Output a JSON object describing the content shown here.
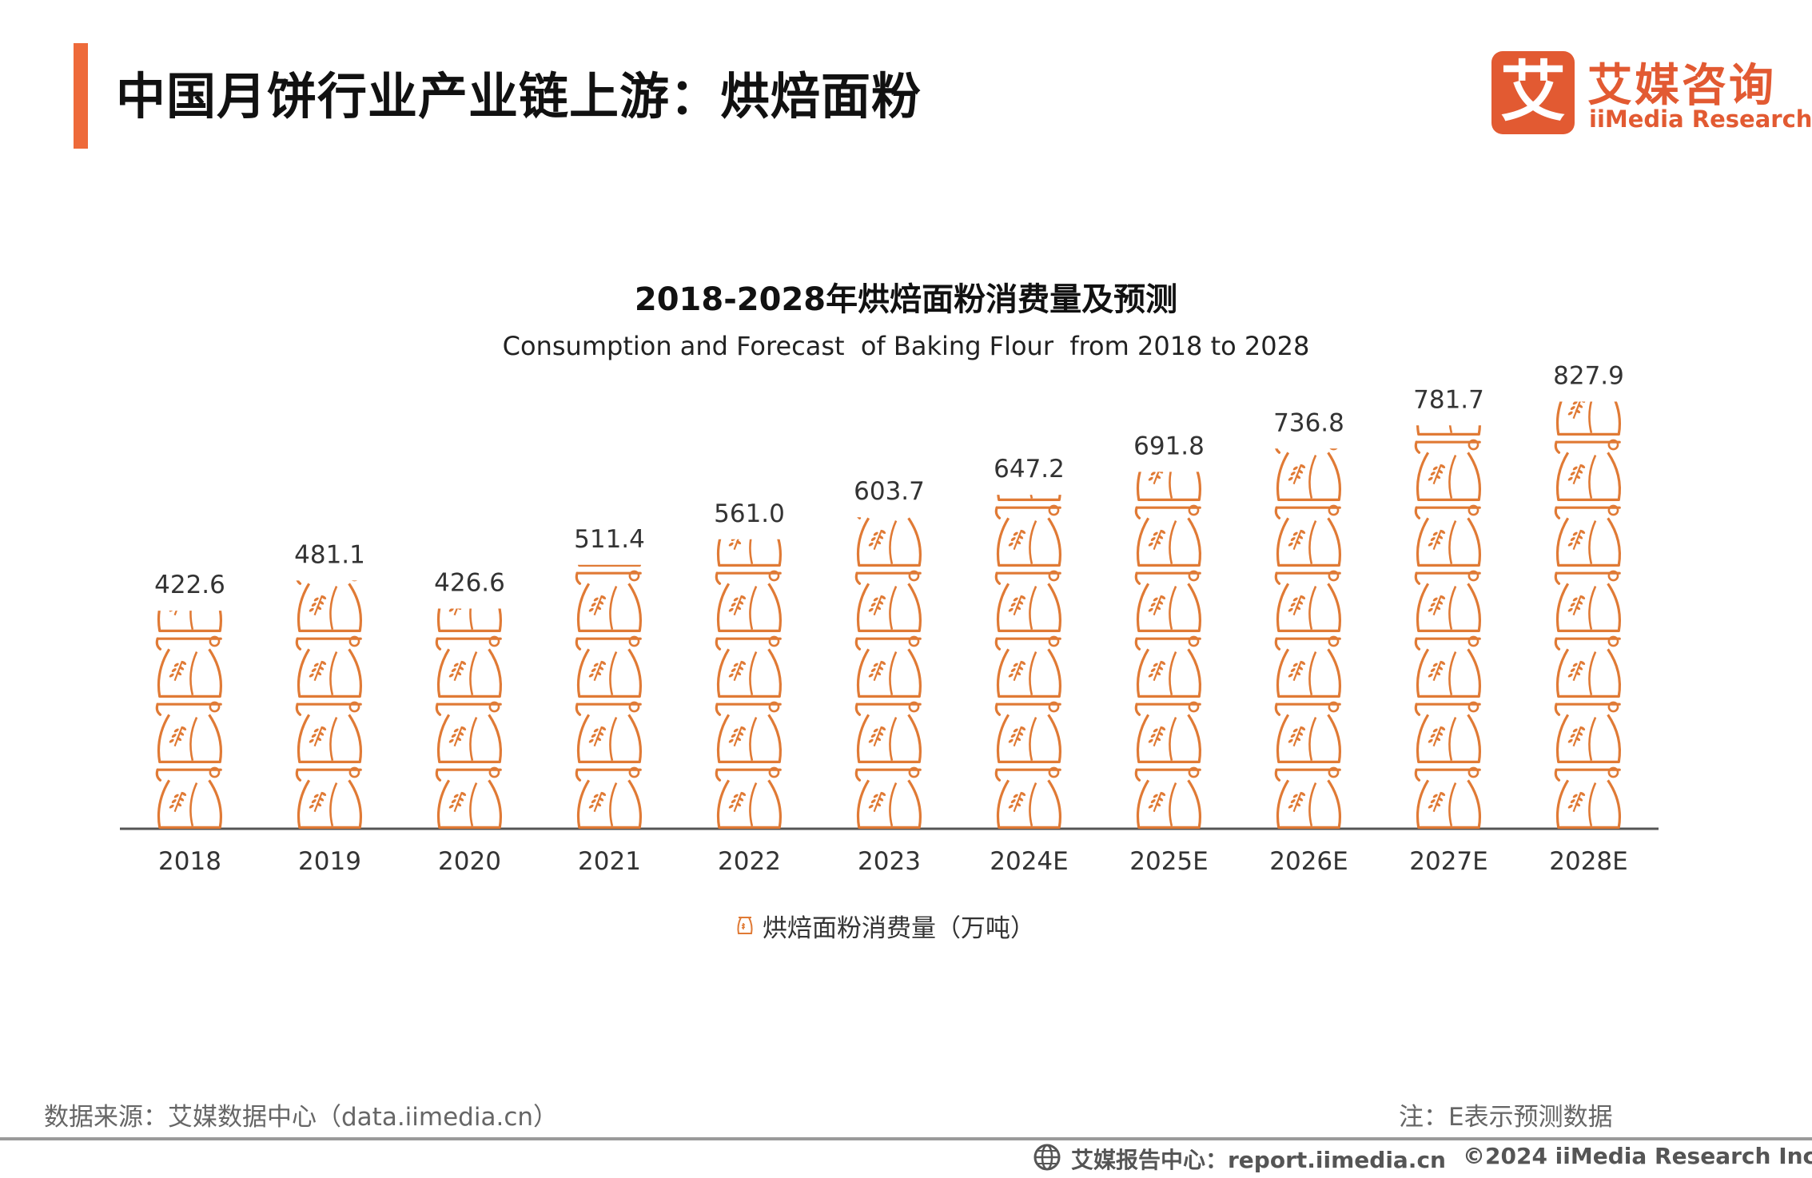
{
  "header": {
    "title": "中国月饼行业产业链上游：烘焙面粉",
    "accent_color": "#ee6a3a"
  },
  "logo": {
    "mark": "艾",
    "name_cn": "艾媒咨询",
    "name_en": "iiMedia Research",
    "color": "#e25a32"
  },
  "chart_data": {
    "type": "bar",
    "style": "pictorial stacked flour-bag icons",
    "title": "2018-2028年烘焙面粉消费量及预测",
    "subtitle": "Consumption and Forecast  of Baking Flour  from 2018 to 2028",
    "categories": [
      "2018",
      "2019",
      "2020",
      "2021",
      "2022",
      "2023",
      "2024E",
      "2025E",
      "2026E",
      "2027E",
      "2028E"
    ],
    "series": [
      {
        "name": "烘焙面粉消费量（万吨）",
        "values": [
          422.6,
          481.1,
          426.6,
          511.4,
          561.0,
          603.7,
          647.2,
          691.8,
          736.8,
          781.7,
          827.9
        ],
        "value_labels": [
          "422.6",
          "481.1",
          "426.6",
          "511.4",
          "561.0",
          "603.7",
          "647.2",
          "691.8",
          "736.8",
          "781.7",
          "827.9"
        ],
        "color": "#e07a35"
      }
    ],
    "value_per_icon": 127,
    "ylim": [
      0,
      850
    ],
    "grid": false,
    "legend_position": "bottom-center",
    "icon": "flour-bag-icon"
  },
  "footer": {
    "source": "数据来源：艾媒数据中心（data.iimedia.cn）",
    "note": "注：E表示预测数据",
    "report_center": "艾媒报告中心：report.iimedia.cn",
    "copyright": "©2024  iiMedia Research  Inc"
  }
}
